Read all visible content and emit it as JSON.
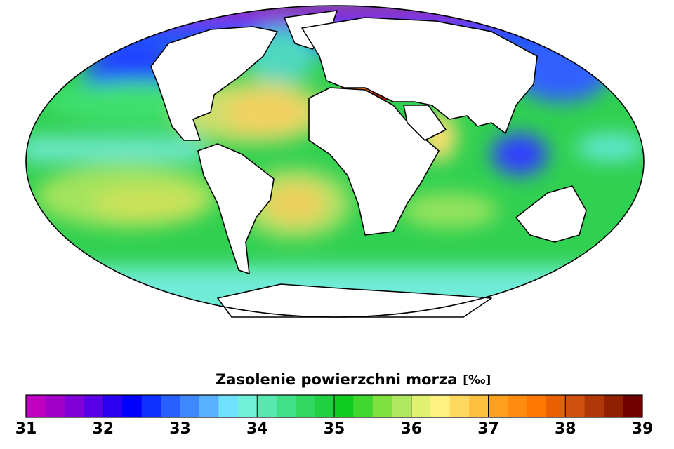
{
  "colorbar": {
    "title": "Zasolenie powierzchni morza",
    "unit": "[‰]",
    "min": 31,
    "max": 39,
    "ticks": [
      31,
      32,
      33,
      34,
      35,
      36,
      37,
      38,
      39
    ],
    "colors": [
      "#c000c0",
      "#a000c8",
      "#8000d8",
      "#5a00e8",
      "#2a00f0",
      "#0000ff",
      "#1030ff",
      "#2860ff",
      "#4088ff",
      "#58b0ff",
      "#70e0ff",
      "#70f0d8",
      "#58e8b0",
      "#40e088",
      "#30d860",
      "#20d040",
      "#10cc20",
      "#40d830",
      "#80e040",
      "#b0e860",
      "#e0f070",
      "#fff080",
      "#ffd860",
      "#ffc040",
      "#ffa020",
      "#ff8c10",
      "#ff7800",
      "#e86000",
      "#d05010",
      "#b03808",
      "#902000",
      "#700000"
    ]
  }
}
